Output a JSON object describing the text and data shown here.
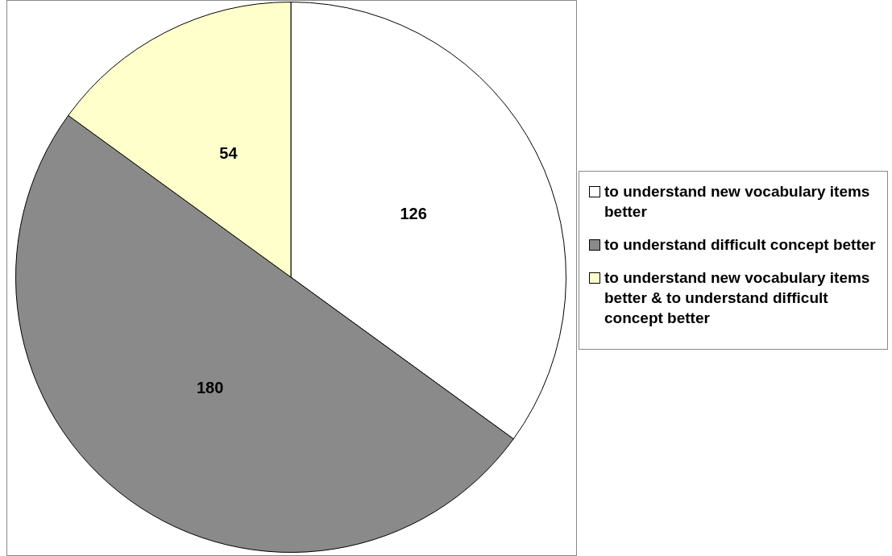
{
  "chart_data": {
    "type": "pie",
    "categories": [
      "to understand new vocabulary items better",
      "to understand difficult concept better",
      "to understand new vocabulary items better & to understand difficult concept better"
    ],
    "values": [
      126,
      180,
      54
    ],
    "colors": [
      "#ffffff",
      "#8a8a8a",
      "#ffffcc"
    ],
    "data_labels": true,
    "legend": "right"
  }
}
